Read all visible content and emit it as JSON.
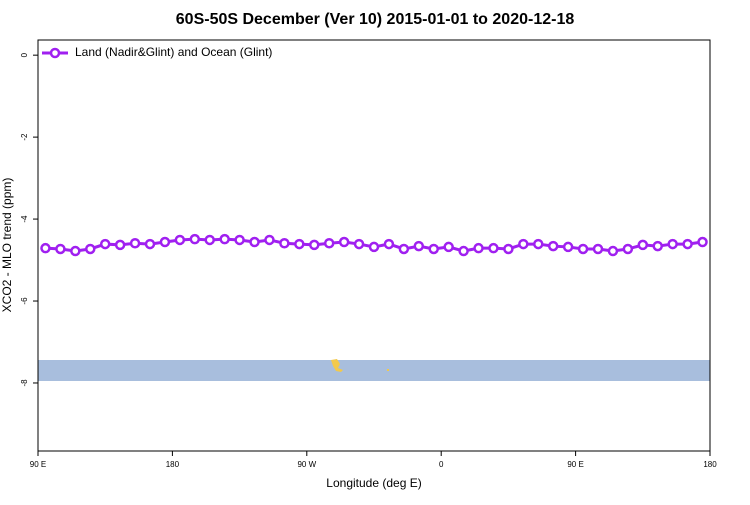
{
  "chart_data": {
    "type": "line",
    "title": "60S-50S December (Ver 10)   2015-01-01 to 2020-12-18",
    "xlabel": "Longitude (deg E)",
    "ylabel": "XCO2 - MLO trend (ppm)",
    "x": [
      95,
      105,
      115,
      125,
      135,
      145,
      155,
      165,
      175,
      185,
      195,
      205,
      215,
      225,
      235,
      245,
      255,
      265,
      275,
      285,
      295,
      305,
      315,
      325,
      335,
      345,
      355,
      365,
      375,
      385,
      395,
      405,
      415,
      425,
      435,
      445,
      455,
      465,
      475,
      485,
      495,
      505,
      515,
      525,
      535
    ],
    "series": [
      {
        "name": "Land (Nadir&Glint) and Ocean (Glint)",
        "color": "#a020f0",
        "values": [
          -4.71,
          -4.73,
          -4.78,
          -4.73,
          -4.61,
          -4.63,
          -4.59,
          -4.61,
          -4.56,
          -4.51,
          -4.49,
          -4.51,
          -4.49,
          -4.51,
          -4.56,
          -4.51,
          -4.59,
          -4.61,
          -4.63,
          -4.59,
          -4.56,
          -4.61,
          -4.68,
          -4.61,
          -4.73,
          -4.66,
          -4.73,
          -4.68,
          -4.78,
          -4.71,
          -4.71,
          -4.73,
          -4.61,
          -4.61,
          -4.66,
          -4.68,
          -4.73,
          -4.73,
          -4.78,
          -4.73,
          -4.63,
          -4.66,
          -4.61,
          -4.61,
          -4.56
        ]
      }
    ],
    "xlim": [
      90,
      540
    ],
    "xticks": [
      {
        "value": 90,
        "label": "90 E"
      },
      180,
      {
        "value": 270,
        "label": "90 W"
      },
      {
        "value": 360,
        "label": "0"
      },
      {
        "value": 450,
        "label": "90 E"
      },
      {
        "value": 540,
        "label": "180"
      }
    ],
    "ylim": [
      -9.66,
      0.37
    ],
    "yticks": [
      0,
      -2,
      -4,
      -6,
      -8
    ],
    "legend": "top-left"
  }
}
